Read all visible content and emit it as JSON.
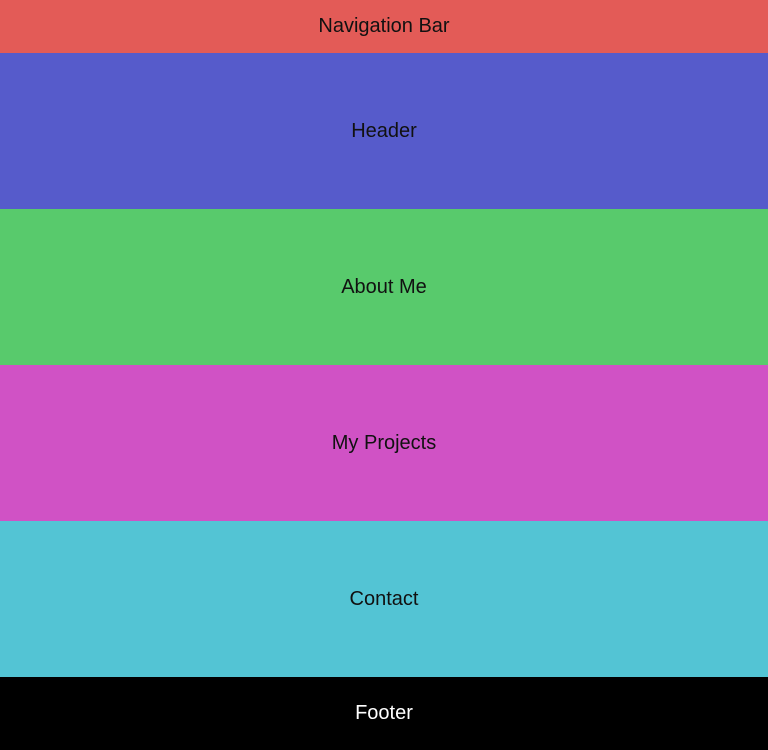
{
  "navbar": {
    "label": "Navigation Bar",
    "color": "#e35b57"
  },
  "header": {
    "label": "Header",
    "color": "#565bcb"
  },
  "about": {
    "label": "About Me",
    "color": "#58ca6c"
  },
  "projects": {
    "label": "My Projects",
    "color": "#d052c5"
  },
  "contact": {
    "label": "Contact",
    "color": "#53c4d4"
  },
  "footer": {
    "label": "Footer",
    "color": "#000000"
  }
}
